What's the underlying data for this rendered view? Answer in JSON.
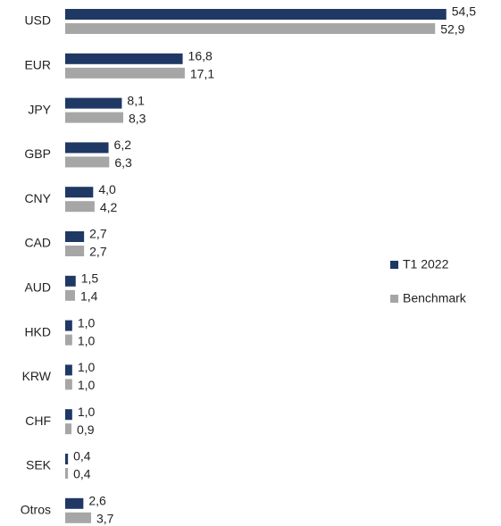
{
  "chart_data": {
    "type": "bar",
    "orientation": "horizontal",
    "categories": [
      "USD",
      "EUR",
      "JPY",
      "GBP",
      "CNY",
      "CAD",
      "AUD",
      "HKD",
      "KRW",
      "CHF",
      "SEK",
      "Otros"
    ],
    "series": [
      {
        "name": "T1 2022",
        "color": "#1f3864",
        "values": [
          54.5,
          16.8,
          8.1,
          6.2,
          4.0,
          2.7,
          1.5,
          1.0,
          1.0,
          1.0,
          0.4,
          2.6
        ],
        "value_labels": [
          "54,5",
          "16,8",
          "8,1",
          "6,2",
          "4,0",
          "2,7",
          "1,5",
          "1,0",
          "1,0",
          "1,0",
          "0,4",
          "2,6"
        ]
      },
      {
        "name": "Benchmark",
        "color": "#a6a6a6",
        "values": [
          52.9,
          17.1,
          8.3,
          6.3,
          4.2,
          2.7,
          1.4,
          1.0,
          1.0,
          0.9,
          0.4,
          3.7
        ],
        "value_labels": [
          "52,9",
          "17,1",
          "8,3",
          "6,3",
          "4,2",
          "2,7",
          "1,4",
          "1,0",
          "1,0",
          "0,9",
          "0,4",
          "3,7"
        ]
      }
    ],
    "legend": "right"
  }
}
